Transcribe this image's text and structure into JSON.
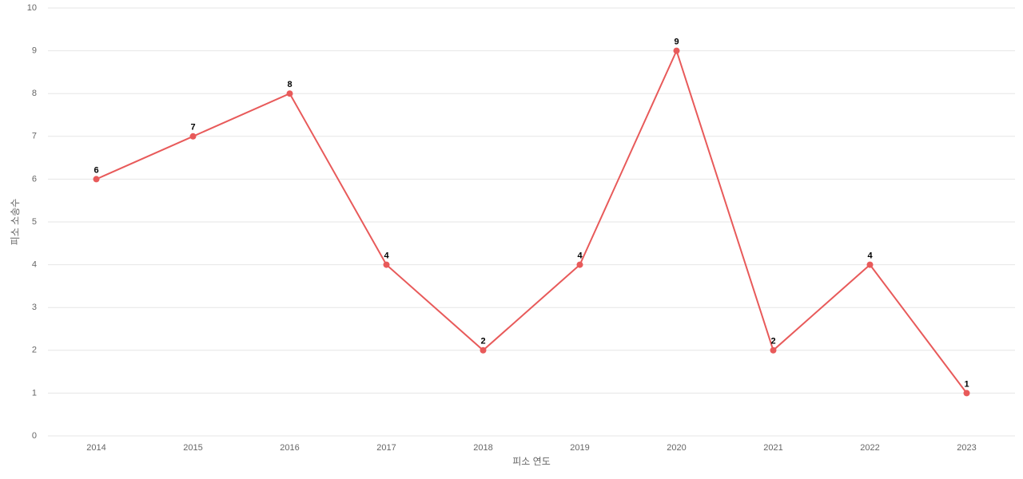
{
  "chart_data": {
    "type": "line",
    "x_label": "피소 연도",
    "y_label": "피소 소송수",
    "categories": [
      "2014",
      "2015",
      "2016",
      "2017",
      "2018",
      "2019",
      "2020",
      "2021",
      "2022",
      "2023"
    ],
    "series": [
      {
        "name": "피소 소송수",
        "color": "#e85a5a",
        "values": [
          6,
          7,
          8,
          4,
          2,
          4,
          9,
          2,
          4,
          1
        ]
      }
    ],
    "ylim": [
      0,
      10
    ],
    "yticks": [
      0,
      1,
      2,
      3,
      4,
      5,
      6,
      7,
      8,
      9,
      10
    ],
    "grid": true
  }
}
